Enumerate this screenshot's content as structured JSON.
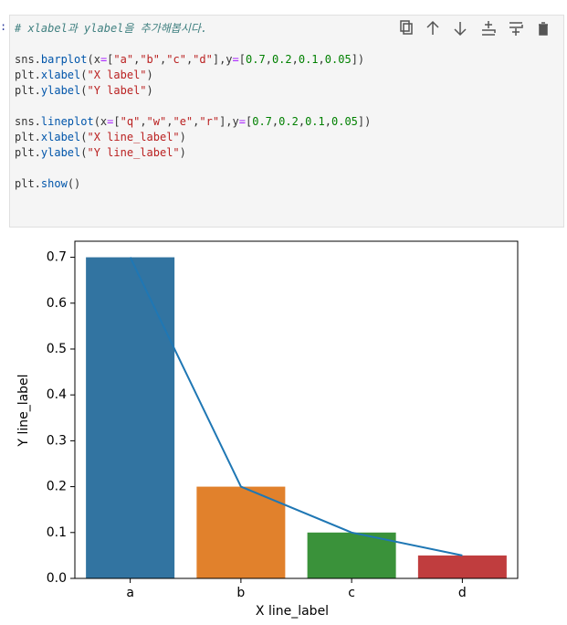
{
  "cell": {
    "prompt": ":",
    "code_blocks": [
      [
        "# xlabel과 ylabel을 추가해봅시다."
      ],
      [
        "sns.barplot(x=[\"a\",\"b\",\"c\",\"d\"],y=[0.7,0.2,0.1,0.05])",
        "plt.xlabel(\"X label\")",
        "plt.ylabel(\"Y label\")"
      ],
      [
        "sns.lineplot(x=[\"q\",\"w\",\"e\",\"r\"],y=[0.7,0.2,0.1,0.05])",
        "plt.xlabel(\"X line_label\")",
        "plt.ylabel(\"Y line_label\")"
      ],
      [
        "plt.show()"
      ]
    ]
  },
  "chart_data": {
    "type": "bar",
    "xlabel": "X line_label",
    "ylabel": "Y line_label",
    "categories": [
      "a",
      "b",
      "c",
      "d"
    ],
    "values": [
      0.7,
      0.2,
      0.1,
      0.05
    ],
    "colors": [
      "#3274a1",
      "#e1812c",
      "#3a923a",
      "#c03d3e"
    ],
    "line": {
      "color": "#1f77b4",
      "values": [
        0.7,
        0.2,
        0.1,
        0.05
      ]
    },
    "ylim": [
      0,
      0.735
    ],
    "yticks": [
      {
        "value": 0,
        "label": "0.0"
      },
      0.1,
      0.2,
      0.3,
      0.4,
      0.5,
      0.6,
      0.7
    ]
  }
}
